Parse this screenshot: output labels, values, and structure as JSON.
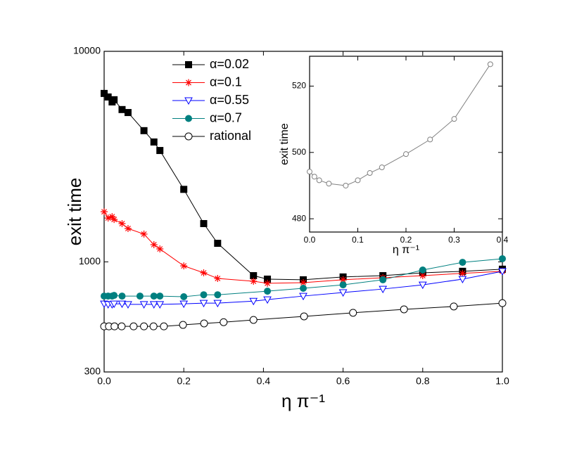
{
  "chart_data": [
    {
      "type": "line",
      "xlabel": "η π⁻¹",
      "ylabel": "exit time",
      "log_y": true,
      "legend": "upper left",
      "xlim": [
        0,
        1
      ],
      "xticks": [
        {
          "value": 0,
          "label": "0.0"
        },
        0.2,
        0.4,
        0.6,
        0.8,
        {
          "value": 1,
          "label": "1.0"
        }
      ],
      "ylim": [
        300,
        10000
      ],
      "yticks": [
        300,
        1000,
        10000
      ],
      "series": [
        {
          "name": "α=0.02",
          "color": "#000000",
          "marker": "square",
          "x": [
            0,
            0.01,
            0.02,
            0.025,
            0.045,
            0.06,
            0.1,
            0.125,
            0.14,
            0.2,
            0.25,
            0.285,
            0.375,
            0.41,
            0.5,
            0.6,
            0.7,
            0.8,
            0.9,
            1.0
          ],
          "values": [
            6310,
            6070,
            5750,
            5890,
            5290,
            5120,
            4200,
            3710,
            3380,
            2210,
            1520,
            1225,
            860,
            828,
            822,
            848,
            860,
            887,
            902,
            923
          ]
        },
        {
          "name": "α=0.1",
          "color": "#ff0000",
          "marker": "star",
          "x": [
            0,
            0.01,
            0.02,
            0.025,
            0.045,
            0.06,
            0.1,
            0.125,
            0.14,
            0.2,
            0.25,
            0.285,
            0.375,
            0.41,
            0.5,
            0.6,
            0.7,
            0.8,
            0.9,
            1.0
          ],
          "values": [
            1730,
            1615,
            1640,
            1590,
            1520,
            1440,
            1355,
            1207,
            1152,
            957,
            887,
            834,
            809,
            791,
            797,
            822,
            841,
            860,
            882,
            902
          ]
        },
        {
          "name": "α=0.55",
          "color": "#0000ff",
          "marker": "triangle-down",
          "x": [
            0,
            0.01,
            0.02,
            0.025,
            0.045,
            0.06,
            0.1,
            0.125,
            0.14,
            0.2,
            0.25,
            0.285,
            0.375,
            0.41,
            0.5,
            0.6,
            0.7,
            0.8,
            0.9,
            1.0
          ],
          "values": [
            632,
            628,
            628,
            632,
            632,
            628,
            628,
            628,
            628,
            632,
            637,
            637,
            651,
            662,
            688,
            715,
            743,
            778,
            828,
            902
          ]
        },
        {
          "name": "α=0.7",
          "color": "#008080",
          "marker": "filled-circle",
          "x": [
            0,
            0.01,
            0.02,
            0.025,
            0.045,
            0.09,
            0.125,
            0.14,
            0.2,
            0.25,
            0.285,
            0.41,
            0.5,
            0.6,
            0.7,
            0.8,
            0.9,
            1.0
          ],
          "values": [
            688,
            688,
            688,
            693,
            688,
            688,
            688,
            688,
            683,
            698,
            698,
            726,
            749,
            778,
            822,
            915,
            995,
            1035
          ]
        },
        {
          "name": "rational",
          "color": "#000000",
          "marker": "open-circle",
          "x": [
            0,
            0.012,
            0.026,
            0.044,
            0.074,
            0.1,
            0.124,
            0.15,
            0.198,
            0.251,
            0.3,
            0.375,
            0.502,
            0.625,
            0.753,
            0.878,
            1.0
          ],
          "values": [
            494,
            494,
            494,
            494,
            494,
            494,
            494,
            494,
            502,
            510,
            517,
            530,
            551,
            573,
            595,
            614,
            637
          ]
        }
      ]
    },
    {
      "type": "line",
      "xlabel": "η π⁻¹",
      "ylabel": "exit time",
      "xlim": [
        0,
        0.4
      ],
      "xticks": [
        {
          "value": 0,
          "label": "0.0"
        },
        0.1,
        0.2,
        0.3,
        0.4
      ],
      "ylim": [
        476,
        529
      ],
      "yticks": [
        480,
        500,
        520
      ],
      "series": [
        {
          "color": "#808080",
          "marker": "open-circle",
          "x": [
            0,
            0.01,
            0.02,
            0.04,
            0.075,
            0.1,
            0.125,
            0.15,
            0.2,
            0.25,
            0.3,
            0.375
          ],
          "values": [
            494.2,
            492.7,
            491.6,
            490.6,
            490.0,
            491.6,
            493.8,
            495.5,
            499.5,
            503.9,
            510.1,
            526.6
          ]
        }
      ]
    }
  ]
}
